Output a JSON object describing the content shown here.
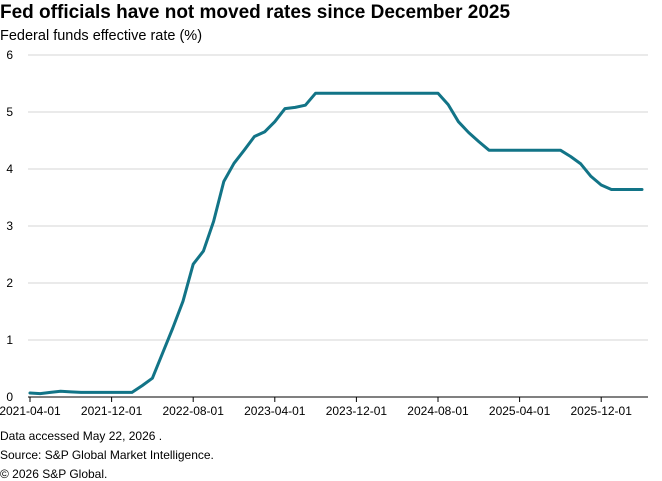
{
  "header": {
    "title": "Fed officials have not moved rates since December 2025",
    "subtitle": "Federal funds effective rate (%)"
  },
  "footer": {
    "accessed": "Data accessed May 22, 2026          .",
    "source": "Source: S&P Global Market Intelligence.",
    "copyright": "© 2026 S&P Global."
  },
  "colors": {
    "line": "#127487",
    "axis": "#000000",
    "grid": "#d4d4d4"
  },
  "chart_data": {
    "type": "line",
    "title": "Fed officials have not moved rates since December 2025",
    "ylabel": "Federal funds effective rate (%)",
    "xlabel": "",
    "ylim": [
      0,
      6
    ],
    "yticks": [
      "0",
      "1",
      "2",
      "3",
      "4",
      "5",
      "6"
    ],
    "xtick_labels": [
      "2021-04-01",
      "2021-12-01",
      "2022-08-01",
      "2023-04-01",
      "2023-12-01",
      "2024-08-01",
      "2025-04-01",
      "2025-12-01"
    ],
    "grid": true,
    "legend": "none",
    "series": [
      {
        "x": [
          "2021-04-01",
          "2021-05-01",
          "2021-06-01",
          "2021-07-01",
          "2021-08-01",
          "2021-09-01",
          "2021-10-01",
          "2021-11-01",
          "2021-12-01",
          "2022-01-01",
          "2022-02-01",
          "2022-03-01",
          "2022-04-01",
          "2022-05-01",
          "2022-06-01",
          "2022-07-01",
          "2022-08-01",
          "2022-09-01",
          "2022-10-01",
          "2022-11-01",
          "2022-12-01",
          "2023-01-01",
          "2023-02-01",
          "2023-03-01",
          "2023-04-01",
          "2023-05-01",
          "2023-06-01",
          "2023-07-01",
          "2023-08-01",
          "2023-09-01",
          "2023-10-01",
          "2023-11-01",
          "2023-12-01",
          "2024-01-01",
          "2024-02-01",
          "2024-03-01",
          "2024-04-01",
          "2024-05-01",
          "2024-06-01",
          "2024-07-01",
          "2024-08-01",
          "2024-09-01",
          "2024-10-01",
          "2024-11-01",
          "2024-12-01",
          "2025-01-01",
          "2025-02-01",
          "2025-03-01",
          "2025-04-01",
          "2025-05-01",
          "2025-06-01",
          "2025-07-01",
          "2025-08-01",
          "2025-09-01",
          "2025-10-01",
          "2025-11-01",
          "2025-12-01",
          "2026-01-01",
          "2026-02-01",
          "2026-03-01",
          "2026-04-01"
        ],
        "values": [
          0.07,
          0.06,
          0.08,
          0.1,
          0.09,
          0.08,
          0.08,
          0.08,
          0.08,
          0.08,
          0.08,
          0.2,
          0.33,
          0.77,
          1.21,
          1.68,
          2.33,
          2.56,
          3.08,
          3.78,
          4.1,
          4.33,
          4.57,
          4.65,
          4.83,
          5.06,
          5.08,
          5.12,
          5.33,
          5.33,
          5.33,
          5.33,
          5.33,
          5.33,
          5.33,
          5.33,
          5.33,
          5.33,
          5.33,
          5.33,
          5.33,
          5.13,
          4.83,
          4.64,
          4.48,
          4.33,
          4.33,
          4.33,
          4.33,
          4.33,
          4.33,
          4.33,
          4.33,
          4.22,
          4.09,
          3.87,
          3.72,
          3.64,
          3.64,
          3.64,
          3.64
        ]
      }
    ]
  }
}
